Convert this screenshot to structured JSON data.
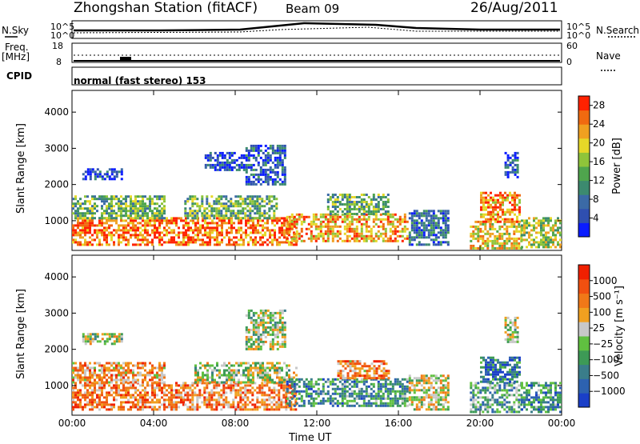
{
  "header": {
    "station": "Zhongshan Station (fitACF)",
    "beam": "Beam 09",
    "date": "26/Aug/2011"
  },
  "strip_labels": {
    "nsky": "N.Sky",
    "nsearch": "N.Search",
    "freq_top": "Freq.",
    "freq_unit": "[MHz]",
    "nave": "Nave",
    "cpid": "CPID",
    "mode": "normal (fast stereo) 153"
  },
  "strip_ticks": {
    "noise_left": [
      "10^5",
      "10^0"
    ],
    "noise_right": [
      "10^5",
      "10^0"
    ],
    "freq_left": [
      "18",
      "8"
    ],
    "freq_right": [
      "60",
      "0"
    ]
  },
  "chart_data": [
    {
      "type": "heatmap",
      "name": "power",
      "ylabel": "Slant Range [km]",
      "xlabel": "Time UT",
      "ylim": [
        180,
        4600
      ],
      "xlim": [
        0,
        24
      ],
      "y_ticks": [
        "1000",
        "2000",
        "3000",
        "4000"
      ],
      "x_ticks": [
        "00:00",
        "04:00",
        "08:00",
        "12:00",
        "16:00",
        "20:00",
        "00:00"
      ],
      "colorbar": {
        "label": "Power [dB]",
        "ticks": [
          "4",
          "8",
          "12",
          "16",
          "20",
          "24",
          "28"
        ],
        "range": [
          0,
          30
        ],
        "colors": [
          "#0a1cff",
          "#2f4fb0",
          "#3b6aa6",
          "#3c8a6f",
          "#4fa54d",
          "#8fc43a",
          "#e6d828",
          "#f0a020",
          "#f06a10",
          "#ff2200"
        ]
      },
      "regions": [
        {
          "t0": 0.0,
          "t1": 11.0,
          "r0": 350,
          "r1": 1100,
          "level": 0.85
        },
        {
          "t0": 0.0,
          "t1": 4.5,
          "r0": 1100,
          "r1": 1700,
          "level": 0.45
        },
        {
          "t0": 0.5,
          "t1": 2.5,
          "r0": 2150,
          "r1": 2450,
          "level": 0.15
        },
        {
          "t0": 5.5,
          "t1": 10.0,
          "r0": 1100,
          "r1": 1700,
          "level": 0.45
        },
        {
          "t0": 6.5,
          "t1": 8.5,
          "r0": 2400,
          "r1": 2900,
          "level": 0.15
        },
        {
          "t0": 8.5,
          "t1": 10.5,
          "r0": 2000,
          "r1": 3100,
          "level": 0.2
        },
        {
          "t0": 10.5,
          "t1": 16.5,
          "r0": 450,
          "r1": 1200,
          "level": 0.75
        },
        {
          "t0": 12.5,
          "t1": 15.5,
          "r0": 1200,
          "r1": 1750,
          "level": 0.45
        },
        {
          "t0": 16.5,
          "t1": 18.5,
          "r0": 350,
          "r1": 1300,
          "level": 0.25
        },
        {
          "t0": 19.5,
          "t1": 22.0,
          "r0": 250,
          "r1": 1000,
          "level": 0.65
        },
        {
          "t0": 20.0,
          "t1": 22.0,
          "r0": 1000,
          "r1": 1800,
          "level": 0.8
        },
        {
          "t0": 21.2,
          "t1": 21.9,
          "r0": 2200,
          "r1": 2900,
          "level": 0.2
        },
        {
          "t0": 22.0,
          "t1": 24.0,
          "r0": 250,
          "r1": 1100,
          "level": 0.55
        }
      ]
    },
    {
      "type": "heatmap",
      "name": "velocity",
      "ylabel": "Slant Range [km]",
      "xlabel": "Time UT",
      "ylim": [
        180,
        4600
      ],
      "xlim": [
        0,
        24
      ],
      "y_ticks": [
        "1000",
        "2000",
        "3000",
        "4000"
      ],
      "x_ticks": [
        "00:00",
        "04:00",
        "08:00",
        "12:00",
        "16:00",
        "20:00",
        "00:00"
      ],
      "colorbar": {
        "label": "Velocity [m s⁻¹]",
        "ticks": [
          "1000",
          "500",
          "100",
          "25",
          "−25",
          "−100",
          "−500",
          "−1000"
        ],
        "colors": [
          "#1a3fc8",
          "#2d62b0",
          "#3a7d8a",
          "#3d9a56",
          "#60c040",
          "#c8c8c8",
          "#f0a020",
          "#f07818",
          "#f05010",
          "#f02000"
        ]
      },
      "regions": [
        {
          "t0": 0.0,
          "t1": 5.5,
          "r0": 350,
          "r1": 1100,
          "level": 0.75
        },
        {
          "t0": 5.5,
          "t1": 11.0,
          "r0": 350,
          "r1": 1100,
          "level": 0.75
        },
        {
          "t0": 0.0,
          "t1": 4.5,
          "r0": 1100,
          "r1": 1650,
          "level": 0.7
        },
        {
          "t0": 0.5,
          "t1": 2.5,
          "r0": 2150,
          "r1": 2450,
          "level": 0.5
        },
        {
          "t0": 6.0,
          "t1": 11.0,
          "r0": 1100,
          "r1": 1650,
          "level": 0.5
        },
        {
          "t0": 8.5,
          "t1": 10.5,
          "r0": 2000,
          "r1": 3100,
          "level": 0.5
        },
        {
          "t0": 10.5,
          "t1": 16.5,
          "r0": 450,
          "r1": 1200,
          "level": 0.3
        },
        {
          "t0": 13.0,
          "t1": 15.5,
          "r0": 1200,
          "r1": 1700,
          "level": 0.72
        },
        {
          "t0": 16.5,
          "t1": 18.5,
          "r0": 350,
          "r1": 1300,
          "level": 0.55
        },
        {
          "t0": 19.5,
          "t1": 22.0,
          "r0": 250,
          "r1": 1100,
          "level": 0.35
        },
        {
          "t0": 20.0,
          "t1": 22.0,
          "r0": 1100,
          "r1": 1800,
          "level": 0.2
        },
        {
          "t0": 21.2,
          "t1": 21.9,
          "r0": 2200,
          "r1": 2900,
          "level": 0.5
        },
        {
          "t0": 22.0,
          "t1": 24.0,
          "r0": 250,
          "r1": 1100,
          "level": 0.3
        }
      ]
    }
  ]
}
